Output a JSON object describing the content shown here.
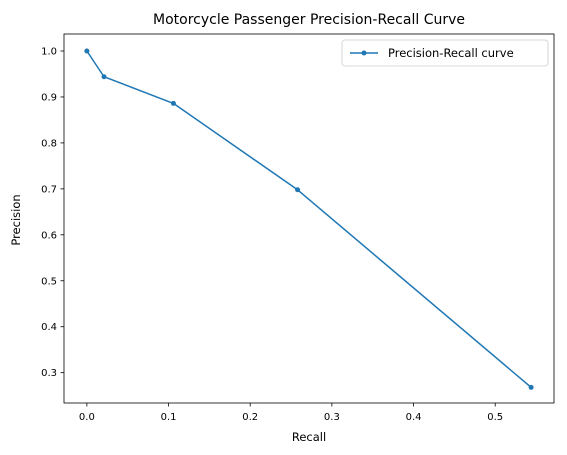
{
  "chart_data": {
    "type": "line",
    "title": "Motorcycle Passenger Precision-Recall Curve",
    "xlabel": "Recall",
    "ylabel": "Precision",
    "xlim": [
      -0.028,
      0.572
    ],
    "ylim": [
      0.234,
      1.037
    ],
    "xticks": [
      0.0,
      0.1,
      0.2,
      0.3,
      0.4,
      0.5
    ],
    "yticks": [
      0.3,
      0.4,
      0.5,
      0.6,
      0.7,
      0.8,
      0.9,
      1.0
    ],
    "grid": false,
    "legend_position": "top-right",
    "series": [
      {
        "name": "Precision-Recall curve",
        "color": "#1f77b4",
        "marker": "dot",
        "x": [
          0.0,
          0.021,
          0.106,
          0.258,
          0.544
        ],
        "y": [
          1.0,
          0.944,
          0.886,
          0.698,
          0.268
        ]
      }
    ]
  }
}
